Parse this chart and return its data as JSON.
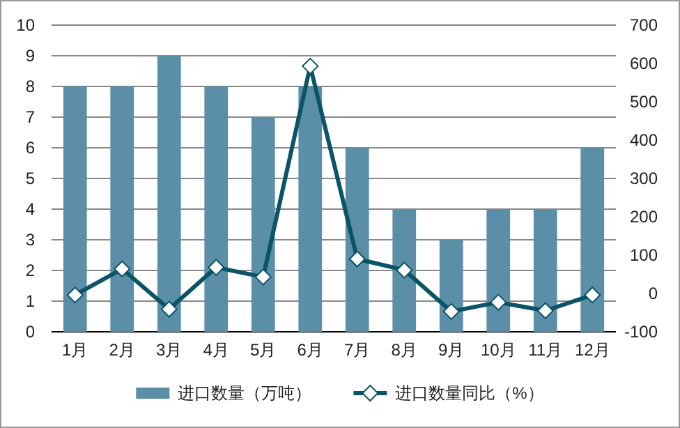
{
  "chart_data": {
    "type": "bar",
    "categories": [
      "1月",
      "2月",
      "3月",
      "4月",
      "5月",
      "6月",
      "7月",
      "8月",
      "9月",
      "10月",
      "11月",
      "12月"
    ],
    "series": [
      {
        "name": "进口数量（万吨）",
        "color": "#5b8fa8",
        "values": [
          8,
          8,
          9,
          8,
          7,
          8,
          6,
          4,
          3,
          4,
          4,
          6
        ]
      },
      {
        "name": "进口数量同比（%）",
        "type": "line",
        "axis": "y2",
        "color": "#0b5468",
        "marker": "diamond",
        "values": [
          -4,
          64,
          -41,
          68,
          43,
          593,
          90,
          61,
          -47,
          -23,
          -45,
          -4
        ]
      }
    ],
    "ylim": [
      0,
      10
    ],
    "yticks": [
      0,
      1,
      2,
      3,
      4,
      5,
      6,
      7,
      8,
      9,
      10
    ],
    "y2lim": [
      -100,
      700
    ],
    "y2ticks": [
      -100,
      0,
      100,
      200,
      300,
      400,
      500,
      600,
      700
    ],
    "grid": "y",
    "legend": "bottom"
  }
}
